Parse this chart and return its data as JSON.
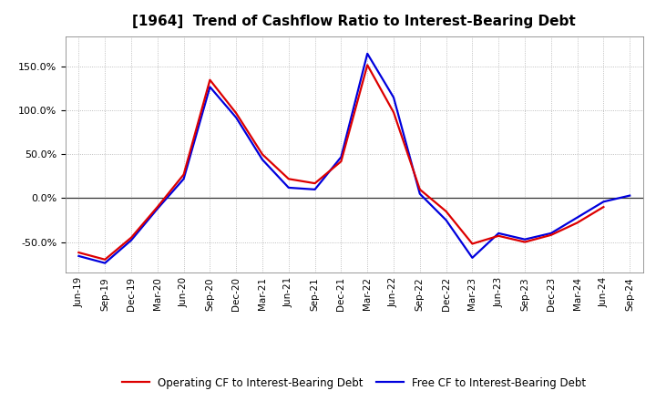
{
  "title": "[1964]  Trend of Cashflow Ratio to Interest-Bearing Debt",
  "x_labels": [
    "Jun-19",
    "Sep-19",
    "Dec-19",
    "Mar-20",
    "Jun-20",
    "Sep-20",
    "Dec-20",
    "Mar-21",
    "Jun-21",
    "Sep-21",
    "Dec-21",
    "Mar-22",
    "Jun-22",
    "Sep-22",
    "Dec-22",
    "Mar-23",
    "Jun-23",
    "Sep-23",
    "Dec-23",
    "Mar-24",
    "Jun-24",
    "Sep-24"
  ],
  "operating_cf": [
    -62,
    -70,
    -45,
    -10,
    27,
    135,
    97,
    50,
    22,
    17,
    42,
    152,
    98,
    10,
    -15,
    -52,
    -43,
    -50,
    -42,
    -28,
    -10,
    null
  ],
  "free_cf": [
    -66,
    -74,
    -48,
    -12,
    22,
    127,
    92,
    44,
    12,
    10,
    47,
    165,
    115,
    5,
    -25,
    -68,
    -40,
    -47,
    -40,
    -22,
    -4,
    3
  ],
  "ylim": [
    -85,
    185
  ],
  "yticks": [
    -50,
    0,
    50,
    100,
    150
  ],
  "operating_color": "#dd0000",
  "free_color": "#0000dd",
  "background_color": "#ffffff",
  "plot_bg_color": "#ffffff",
  "grid_color": "#999999",
  "legend_op": "Operating CF to Interest-Bearing Debt",
  "legend_free": "Free CF to Interest-Bearing Debt",
  "title_fontsize": 11,
  "tick_fontsize": 8,
  "legend_fontsize": 8.5
}
